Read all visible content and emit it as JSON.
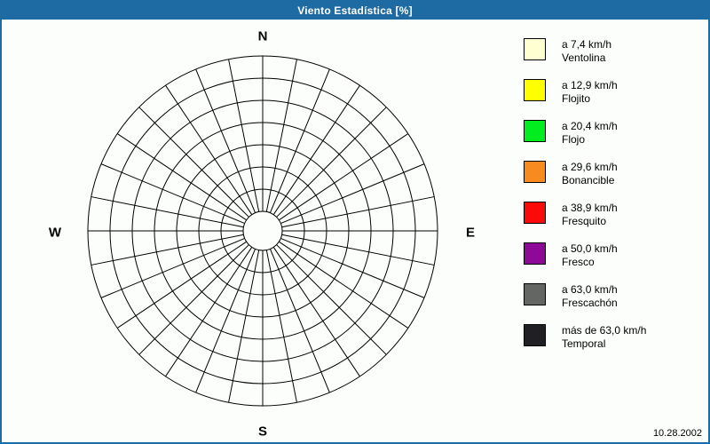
{
  "window": {
    "title": "Viento Estadística [%]"
  },
  "statusbar": {
    "date": "10.28.2002"
  },
  "compass": {
    "north": "N",
    "south": "S",
    "east": "E",
    "west": "W"
  },
  "colors": {
    "frame": "#1E6AA3",
    "titlebar_bg": "#1E6AA3",
    "title_text": "#FFFFFF",
    "background": "#FCFEFB",
    "grid": "#000000"
  },
  "legend": {
    "items": [
      {
        "color": "#FFFFD2",
        "speed": "a 7,4 km/h",
        "name": "Ventolina"
      },
      {
        "color": "#FFFF00",
        "speed": "a 12,9 km/h",
        "name": "Flojito"
      },
      {
        "color": "#00ED1F",
        "speed": "a 20,4 km/h",
        "name": "Flojo"
      },
      {
        "color": "#F78B1F",
        "speed": "a 29,6 km/h",
        "name": "Bonancible"
      },
      {
        "color": "#FA0A08",
        "speed": "a 38,9 km/h",
        "name": "Fresquito"
      },
      {
        "color": "#8E0997",
        "speed": "a 50,0 km/h",
        "name": "Fresco"
      },
      {
        "color": "#646663",
        "speed": "a 63,0 km/h",
        "name": "Frescachón"
      },
      {
        "color": "#201F23",
        "speed": "más de 63,0 km/h",
        "name": "Temporal"
      }
    ]
  },
  "chart_data": {
    "type": "windrose",
    "title": "Viento Estadística [%]",
    "units": "%",
    "date": "10.28.2002",
    "directions_count": 32,
    "sector_angle_deg": 11.25,
    "compass_labels": [
      "N",
      "E",
      "S",
      "W"
    ],
    "center": {
      "x": 294,
      "y": 238
    },
    "inner_hole_radius": 22,
    "ring_radii": [
      22,
      47,
      72,
      97,
      122,
      147,
      172,
      197
    ],
    "outer_radius": 197,
    "series": [],
    "note": "Empty polar grid: 32 direction spokes and 8 concentric rings; no wind-frequency sectors are plotted (all values 0 / no data shown).",
    "speed_bins": [
      {
        "label": "a 7,4 km/h",
        "beaufort_name": "Ventolina",
        "color": "#FFFFD2"
      },
      {
        "label": "a 12,9 km/h",
        "beaufort_name": "Flojito",
        "color": "#FFFF00"
      },
      {
        "label": "a 20,4 km/h",
        "beaufort_name": "Flojo",
        "color": "#00ED1F"
      },
      {
        "label": "a 29,6 km/h",
        "beaufort_name": "Bonancible",
        "color": "#F78B1F"
      },
      {
        "label": "a 38,9 km/h",
        "beaufort_name": "Fresquito",
        "color": "#FA0A08"
      },
      {
        "label": "a 50,0 km/h",
        "beaufort_name": "Fresco",
        "color": "#8E0997"
      },
      {
        "label": "a 63,0 km/h",
        "beaufort_name": "Frescachón",
        "color": "#646663"
      },
      {
        "label": "más de 63,0 km/h",
        "beaufort_name": "Temporal",
        "color": "#201F23"
      }
    ]
  }
}
